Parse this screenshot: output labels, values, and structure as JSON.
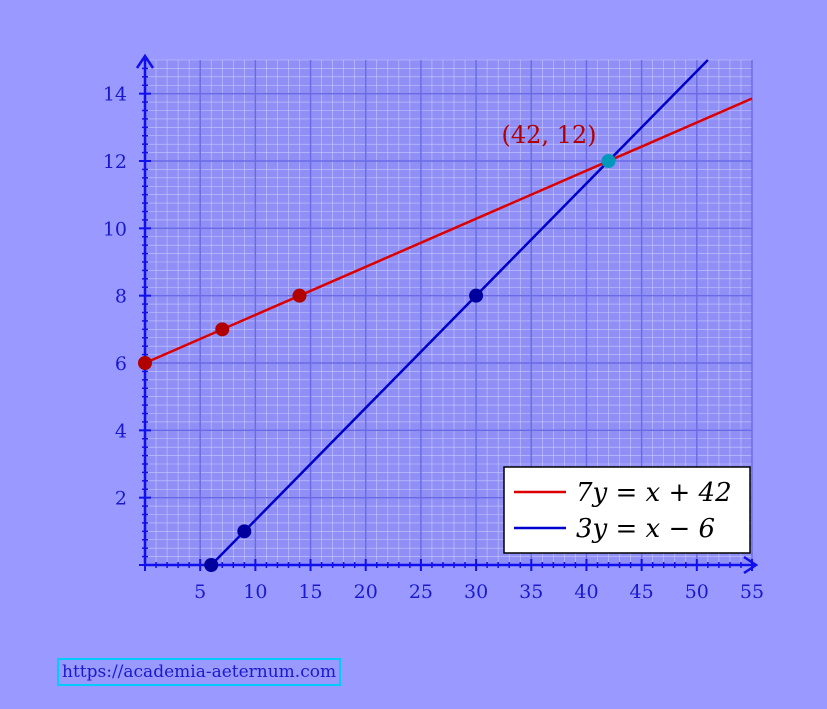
{
  "chart_data": {
    "type": "line",
    "xlim": [
      0,
      55
    ],
    "ylim": [
      0,
      15
    ],
    "x_ticks": [
      5,
      10,
      15,
      20,
      25,
      30,
      35,
      40,
      45,
      50,
      55
    ],
    "y_ticks": [
      2,
      4,
      6,
      8,
      10,
      12,
      14
    ],
    "grid": true,
    "legend_position": "bottom-right",
    "series": [
      {
        "name": "7y = x + 42",
        "color": "#dd0000",
        "slope_num": 1,
        "slope_den": 7,
        "intercept": 6,
        "points": [
          [
            0,
            6
          ],
          [
            7,
            7
          ],
          [
            14,
            8
          ]
        ]
      },
      {
        "name": "3y = x − 6",
        "color": "#0000cc",
        "slope_num": 1,
        "slope_den": 3,
        "intercept": -2,
        "points": [
          [
            6,
            0
          ],
          [
            9,
            1
          ],
          [
            30,
            8
          ]
        ]
      }
    ],
    "intersection": {
      "x": 42,
      "y": 12,
      "label": "(42, 12)",
      "color": "#0099bb"
    }
  },
  "footer": {
    "url": "https://academia-aeternum.com"
  }
}
